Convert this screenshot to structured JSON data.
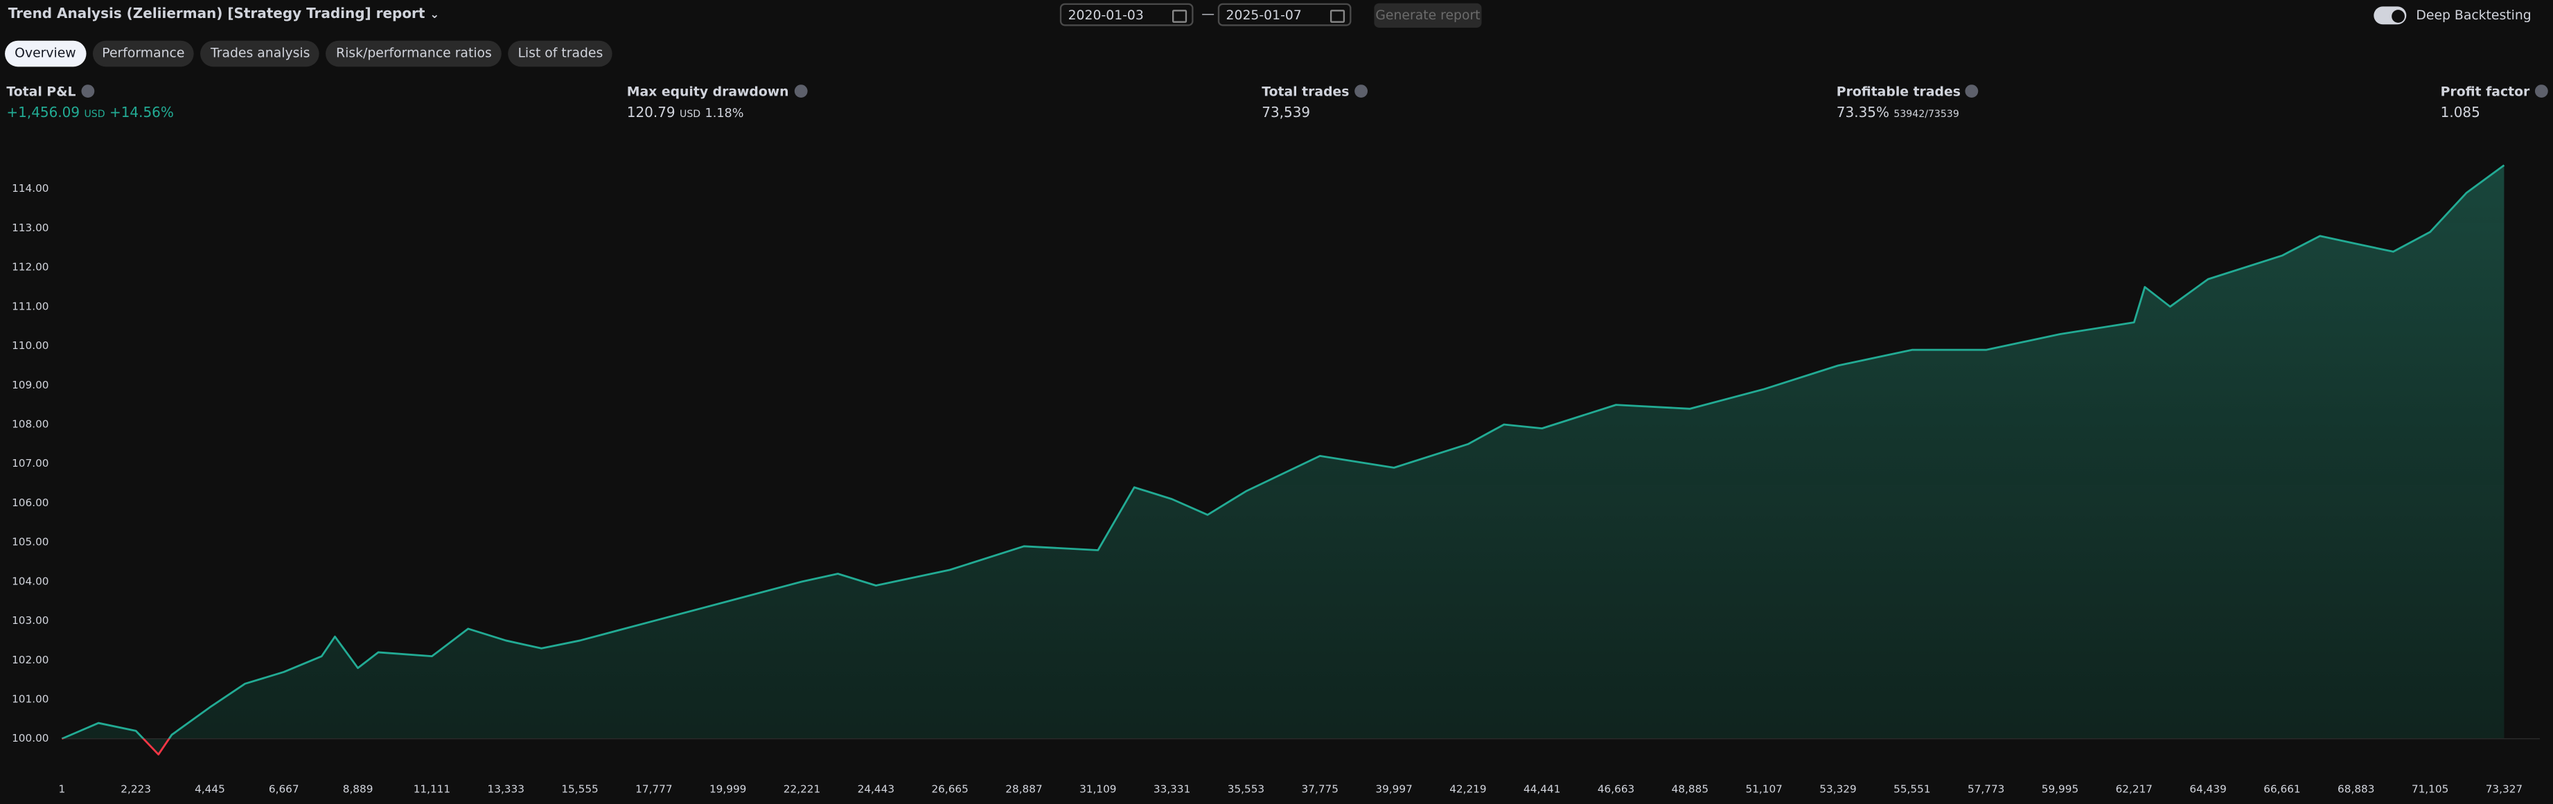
{
  "header": {
    "title": "Trend Analysis (Zeliierman) [Strategy Trading] report",
    "date_from": "2020-01-03",
    "date_sep": "—",
    "date_to": "2025-01-07",
    "generate_button": "Generate report",
    "toggle_label": "Deep Backtesting"
  },
  "tabs": [
    "Overview",
    "Performance",
    "Trades analysis",
    "Risk/performance ratios",
    "List of trades"
  ],
  "metrics": [
    {
      "label": "Total P&L",
      "value": "+1,456.09",
      "unit": "USD",
      "extra": "+14.56%"
    },
    {
      "label": "Max equity drawdown",
      "value": "120.79",
      "unit": "USD",
      "extra": "1.18%"
    },
    {
      "label": "Total trades",
      "value": "73,539"
    },
    {
      "label": "Profitable trades",
      "value": "73.35%",
      "extra": "53942/73539"
    },
    {
      "label": "Profit factor",
      "value": "1.085"
    }
  ],
  "chart_data": {
    "type": "line",
    "color": "#22ab94",
    "negative_color": "#f23645",
    "grid": false,
    "x": [
      1,
      1100,
      2223,
      2900,
      3300,
      4445,
      5500,
      6667,
      7800,
      8200,
      8889,
      9500,
      11111,
      12200,
      13333,
      14400,
      15555,
      17777,
      19999,
      22221,
      23300,
      24443,
      26665,
      28887,
      31109,
      32200,
      33331,
      34400,
      35553,
      37775,
      39997,
      42219,
      43300,
      44441,
      46663,
      48885,
      51107,
      53329,
      55551,
      57773,
      59995,
      62217,
      62540,
      63300,
      64439,
      66661,
      67800,
      68883,
      70000,
      71105,
      72200,
      73327
    ],
    "values": [
      100.0,
      100.4,
      100.2,
      99.6,
      100.1,
      100.8,
      101.4,
      101.7,
      102.1,
      102.6,
      101.8,
      102.2,
      102.1,
      102.8,
      102.5,
      102.3,
      102.5,
      103.0,
      103.5,
      104.0,
      104.2,
      103.9,
      104.3,
      104.9,
      104.8,
      106.4,
      106.1,
      105.7,
      106.3,
      107.2,
      106.9,
      107.5,
      108.0,
      107.9,
      108.5,
      108.4,
      108.9,
      109.5,
      109.9,
      109.9,
      110.3,
      110.6,
      111.5,
      111.0,
      111.7,
      112.3,
      112.8,
      112.6,
      112.4,
      112.9,
      113.9,
      114.6
    ],
    "xlim": [
      1,
      74400
    ],
    "ylim": [
      99.5,
      114.9
    ],
    "xticks": [
      1,
      {
        "value": 2223,
        "label": "2,223"
      },
      {
        "value": 4445,
        "label": "4,445"
      },
      {
        "value": 6667,
        "label": "6,667"
      },
      {
        "value": 8889,
        "label": "8,889"
      },
      {
        "value": 11111,
        "label": "11,111"
      },
      {
        "value": 13333,
        "label": "13,333"
      },
      {
        "value": 15555,
        "label": "15,555"
      },
      {
        "value": 17777,
        "label": "17,777"
      },
      {
        "value": 19999,
        "label": "19,999"
      },
      {
        "value": 22221,
        "label": "22,221"
      },
      {
        "value": 24443,
        "label": "24,443"
      },
      {
        "value": 26665,
        "label": "26,665"
      },
      {
        "value": 28887,
        "label": "28,887"
      },
      {
        "value": 31109,
        "label": "31,109"
      },
      {
        "value": 33331,
        "label": "33,331"
      },
      {
        "value": 35553,
        "label": "35,553"
      },
      {
        "value": 37775,
        "label": "37,775"
      },
      {
        "value": 39997,
        "label": "39,997"
      },
      {
        "value": 42219,
        "label": "42,219"
      },
      {
        "value": 44441,
        "label": "44,441"
      },
      {
        "value": 46663,
        "label": "46,663"
      },
      {
        "value": 48885,
        "label": "48,885"
      },
      {
        "value": 51107,
        "label": "51,107"
      },
      {
        "value": 53329,
        "label": "53,329"
      },
      {
        "value": 55551,
        "label": "55,551"
      },
      {
        "value": 57773,
        "label": "57,773"
      },
      {
        "value": 59995,
        "label": "59,995"
      },
      {
        "value": 62217,
        "label": "62,217"
      },
      {
        "value": 64439,
        "label": "64,439"
      },
      {
        "value": 66661,
        "label": "66,661"
      },
      {
        "value": 68883,
        "label": "68,883"
      },
      {
        "value": 71105,
        "label": "71,105"
      },
      {
        "value": 73327,
        "label": "73,327"
      }
    ],
    "yticks": [
      {
        "value": 100,
        "label": "100.00"
      },
      {
        "value": 101,
        "label": "101.00"
      },
      {
        "value": 102,
        "label": "102.00"
      },
      {
        "value": 103,
        "label": "103.00"
      },
      {
        "value": 104,
        "label": "104.00"
      },
      {
        "value": 105,
        "label": "105.00"
      },
      {
        "value": 106,
        "label": "106.00"
      },
      {
        "value": 107,
        "label": "107.00"
      },
      {
        "value": 108,
        "label": "108.00"
      },
      {
        "value": 109,
        "label": "109.00"
      },
      {
        "value": 110,
        "label": "110.00"
      },
      {
        "value": 111,
        "label": "111.00"
      },
      {
        "value": 112,
        "label": "112.00"
      },
      {
        "value": 113,
        "label": "113.00"
      },
      {
        "value": 114,
        "label": "114.00"
      }
    ]
  }
}
